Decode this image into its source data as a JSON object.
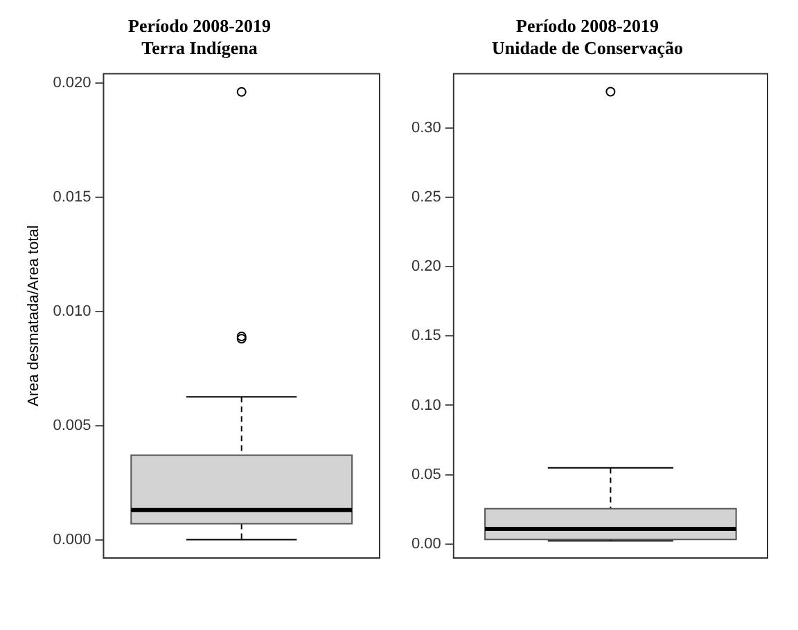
{
  "chart_data": [
    {
      "type": "box",
      "title": "Período 2008-2019\nTerra Indígena",
      "ylabel": "Area desmatada/Area total",
      "categories": [
        null
      ],
      "boxes": [
        {
          "low": 0,
          "q1": 0.0007,
          "median": 0.0013,
          "q3": 0.0037,
          "high": 0.00625,
          "outliers": [
            0.0088,
            0.0089,
            0.0196
          ]
        }
      ],
      "ylim": [
        -0.0008,
        0.0204
      ],
      "yticks": [
        {
          "value": 0,
          "label": "0.000"
        },
        0.005,
        {
          "value": 0.01,
          "label": "0.010"
        },
        0.015,
        {
          "value": 0.02,
          "label": "0.020"
        }
      ],
      "grid": false
    },
    {
      "type": "box",
      "title": "Período 2008-2019\nUnidade de Conservação",
      "categories": [
        null
      ],
      "boxes": [
        {
          "low": 0.0023,
          "q1": 0.0034,
          "median": 0.011,
          "q3": 0.0256,
          "high": 0.055,
          "outliers": [
            0.326
          ]
        }
      ],
      "ylim": [
        -0.01,
        0.339
      ],
      "yticks": [
        {
          "value": 0,
          "label": "0.00"
        },
        0.05,
        {
          "value": 0.1,
          "label": "0.10"
        },
        0.15,
        {
          "value": 0.2,
          "label": "0.20"
        },
        0.25,
        {
          "value": 0.3,
          "label": "0.30"
        }
      ],
      "grid": false
    }
  ]
}
